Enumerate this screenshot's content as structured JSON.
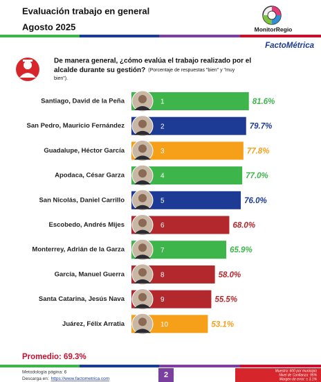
{
  "chart_data": {
    "type": "bar",
    "title": "Evaluación trabajo en general",
    "subtitle": "Agosto 2025",
    "brand": "MonitorRegio",
    "publisher": "FactoMétrica",
    "question": [
      "De manera general, ¿cómo evalúa el trabajo realizado por el",
      "alcalde durante su gestión?"
    ],
    "note": [
      "(Porcentaje de respuestas \"bien\" y \"muy",
      "bien\")."
    ],
    "categories": [
      "Santiago, David de la Peña",
      "San Pedro, Mauricio Fernández",
      "Guadalupe, Héctor García",
      "Apodaca, César Garza",
      "San Nicolás, Daniel Carrillo",
      "Escobedo, Andrés Mijes",
      "Monterrey, Adrián de la Garza",
      "García, Manuel Guerra",
      "Santa Catarina, Jesús Nava",
      "Juárez, Félix Arratia"
    ],
    "ranks": [
      1,
      2,
      3,
      4,
      5,
      6,
      7,
      8,
      9,
      10
    ],
    "values": [
      81.6,
      79.7,
      77.8,
      77.0,
      76.0,
      68.0,
      65.9,
      58.0,
      55.5,
      53.1
    ],
    "value_labels": [
      "81.6%",
      "79.7%",
      "77.8%",
      "77.0%",
      "76.0%",
      "68.0%",
      "65.9%",
      "58.0%",
      "55.5%",
      "53.1%"
    ],
    "colors": [
      "#3db54a",
      "#1d3a94",
      "#f6a01a",
      "#3db54a",
      "#1d3a94",
      "#b3282d",
      "#3db54a",
      "#b3282d",
      "#b3282d",
      "#f6a01a"
    ],
    "average": "Promedio: 69.3%",
    "footer": {
      "methodology": "Metodología página: 6",
      "download": "Descarga en:",
      "url": "https://www.factometrica.com",
      "page": "2",
      "sample": [
        "Muestra: 600 por municipio",
        "Nivel de Confianza: 95%",
        "Margen de error: ± 3.1%"
      ]
    }
  }
}
